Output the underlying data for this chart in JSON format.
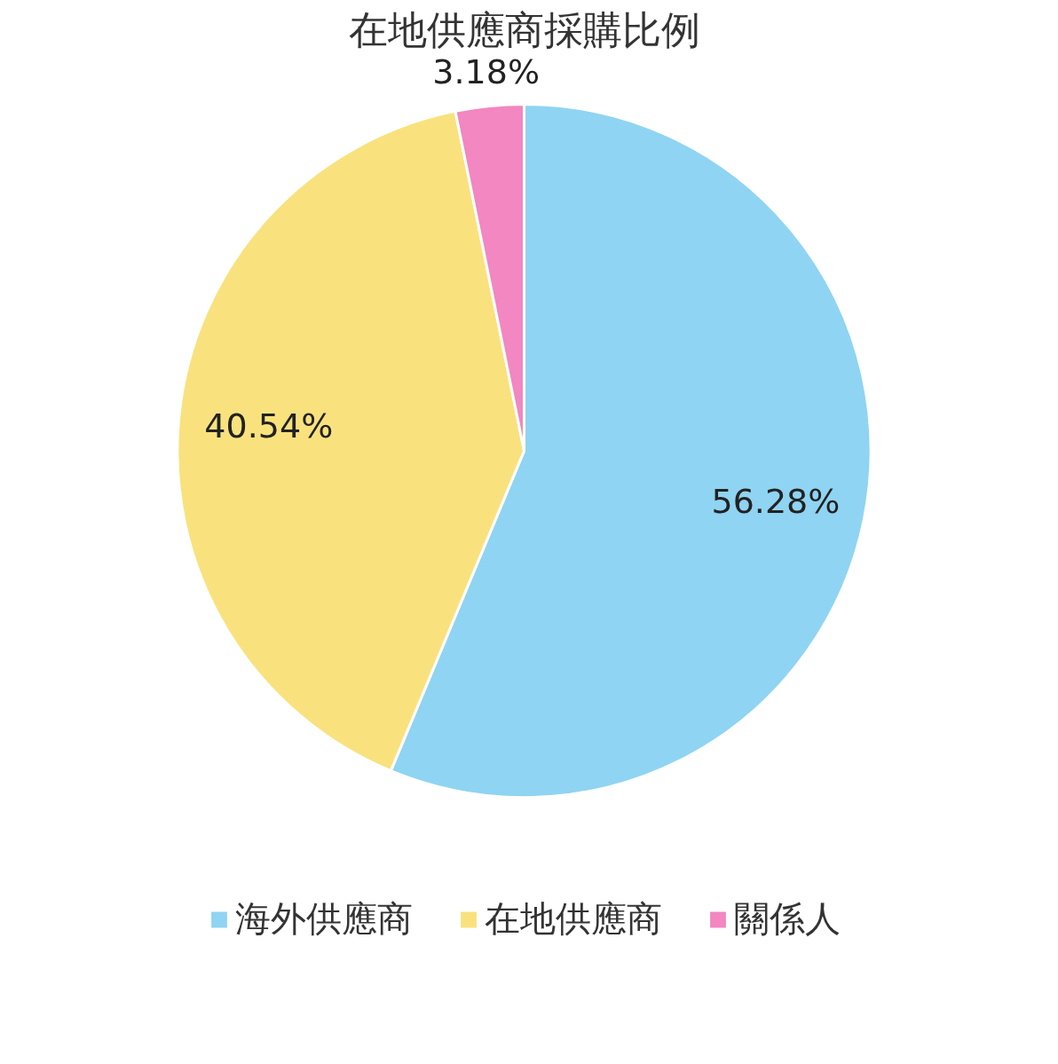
{
  "chart_data": {
    "type": "pie",
    "title": "在地供應商採購比例",
    "categories": [
      "海外供應商",
      "在地供應商",
      "關係人"
    ],
    "values": [
      56.28,
      40.54,
      3.18
    ],
    "value_labels": [
      "56.28%",
      "40.54%",
      "3.18%"
    ],
    "colors": [
      "#8fd4f2",
      "#f9e27d",
      "#f287c1"
    ],
    "legend": "bottom"
  }
}
